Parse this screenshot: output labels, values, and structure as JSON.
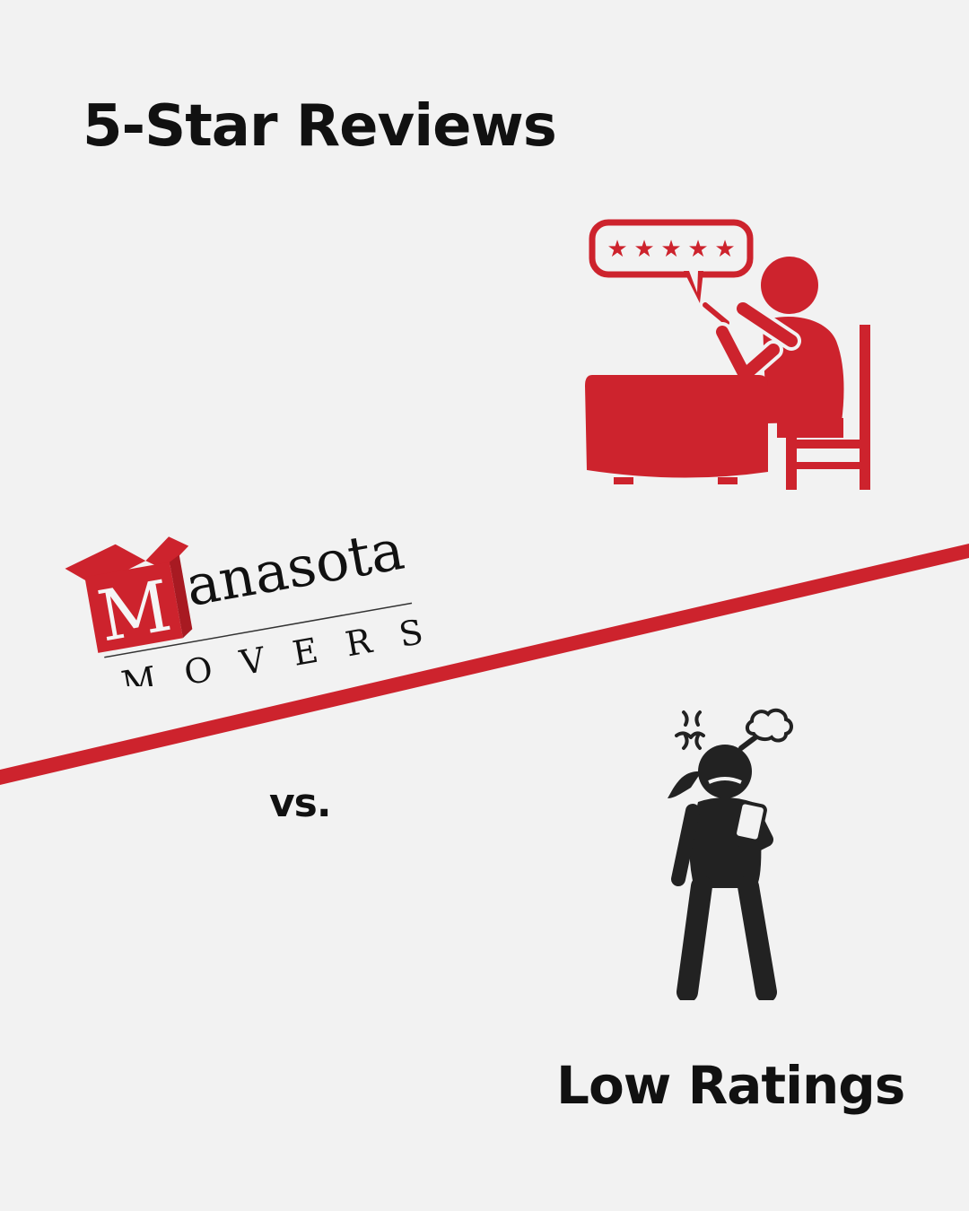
{
  "headlines": {
    "top": "5-Star Reviews",
    "versus": "vs.",
    "bottom": "Low Ratings"
  },
  "logo": {
    "initial": "M",
    "word": "anasota",
    "tagline": "M O V E R S"
  },
  "review_bubble": {
    "rating_stars": 5,
    "star_glyph": "★"
  },
  "icons": {
    "happy_reviewer": "person-at-table-with-phone-icon",
    "angry_reviewer": "angry-person-with-phone-icon",
    "anger_mark": "anger-symbol-icon",
    "steam_puff": "steam-cloud-icon"
  },
  "colors": {
    "background": "#f2f2f2",
    "accent_red": "#cd232d",
    "ink": "#222222"
  }
}
